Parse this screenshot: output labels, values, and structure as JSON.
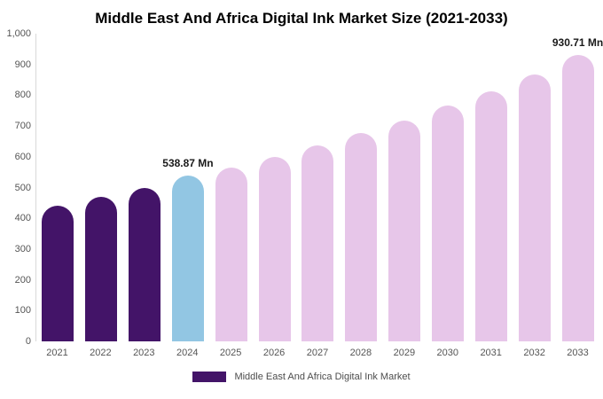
{
  "title": "Middle East And Africa Digital Ink Market Size (2021-2033)",
  "chart_data": {
    "type": "bar",
    "title": "Middle East And Africa Digital Ink Market Size (2021-2033)",
    "xlabel": "",
    "ylabel": "",
    "ylim": [
      0,
      1000
    ],
    "grid": false,
    "legend_position": "bottom",
    "categories": [
      "2021",
      "2022",
      "2023",
      "2024",
      "2025",
      "2026",
      "2027",
      "2028",
      "2029",
      "2030",
      "2031",
      "2032",
      "2033"
    ],
    "values": [
      440,
      470,
      500,
      538.87,
      565,
      600,
      637,
      676,
      718,
      766,
      813,
      868,
      930.71
    ],
    "bar_colors": [
      "#431468",
      "#431468",
      "#431468",
      "#92c6e3",
      "#e7c6e9",
      "#e7c6e9",
      "#e7c6e9",
      "#e7c6e9",
      "#e7c6e9",
      "#e7c6e9",
      "#e7c6e9",
      "#e7c6e9",
      "#e7c6e9"
    ],
    "annotations": [
      {
        "index": 3,
        "text": "538.87 Mn"
      },
      {
        "index": 12,
        "text": "930.71 Mn"
      }
    ],
    "yticks": [
      {
        "label": "1,000",
        "value": 1000
      },
      {
        "label": "900",
        "value": 900
      },
      {
        "label": "800",
        "value": 800
      },
      {
        "label": "700",
        "value": 700
      },
      {
        "label": "600",
        "value": 600
      },
      {
        "label": "500",
        "value": 500
      },
      {
        "label": "400",
        "value": 400
      },
      {
        "label": "300",
        "value": 300
      },
      {
        "label": "200",
        "value": 200
      },
      {
        "label": "100",
        "value": 100
      },
      {
        "label": "0",
        "value": 0
      }
    ],
    "legend": {
      "label": "Middle East And Africa Digital Ink Market",
      "color": "#431468"
    }
  }
}
